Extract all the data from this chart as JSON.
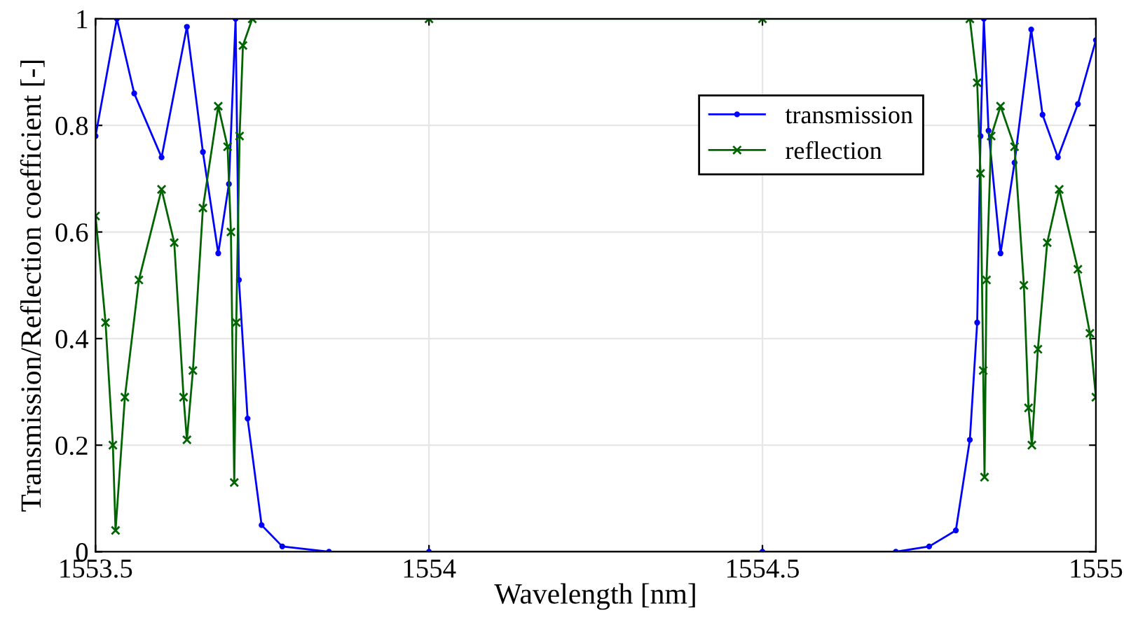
{
  "chart_data": {
    "type": "line",
    "xlabel": "Wavelength [nm]",
    "ylabel": "Transmission/Reflection coefficient [-]",
    "xlim": [
      1553.5,
      1555
    ],
    "xticks": [
      1553.5,
      1554,
      1554.5,
      1555
    ],
    "ylim": [
      0,
      1
    ],
    "yticks": [
      0,
      0.2,
      0.4,
      0.6,
      0.8,
      1
    ],
    "grid": true,
    "legend": "top right",
    "line_style": "solid",
    "series": [
      {
        "name": "transmission",
        "color": "#0000ff",
        "marker": "circle",
        "x": [
          1553.5,
          1553.532,
          1553.558,
          1553.599,
          1553.637,
          1553.661,
          1553.684,
          1553.7,
          1553.71,
          1553.715,
          1553.728,
          1553.749,
          1553.78,
          1553.85,
          1554.0,
          1554.5,
          1554.7,
          1554.75,
          1554.79,
          1554.811,
          1554.822,
          1554.827,
          1554.832,
          1554.839,
          1554.857,
          1554.878,
          1554.903,
          1554.92,
          1554.943,
          1554.973,
          1555.0
        ],
        "values": [
          0.78,
          1.0,
          0.86,
          0.74,
          0.985,
          0.75,
          0.56,
          0.69,
          1.0,
          0.51,
          0.25,
          0.05,
          0.01,
          0.0,
          0.0,
          0.0,
          0.0,
          0.01,
          0.04,
          0.21,
          0.43,
          0.78,
          1.0,
          0.79,
          0.56,
          0.73,
          0.98,
          0.82,
          0.74,
          0.84,
          0.96
        ]
      },
      {
        "name": "reflection",
        "color": "#006400",
        "marker": "cross",
        "x": [
          1553.5,
          1553.515,
          1553.526,
          1553.53,
          1553.544,
          1553.565,
          1553.599,
          1553.618,
          1553.632,
          1553.637,
          1553.646,
          1553.661,
          1553.684,
          1553.698,
          1553.703,
          1553.708,
          1553.711,
          1553.716,
          1553.721,
          1553.735,
          1554.0,
          1554.5,
          1554.811,
          1554.822,
          1554.827,
          1554.831,
          1554.833,
          1554.836,
          1554.843,
          1554.857,
          1554.878,
          1554.892,
          1554.899,
          1554.904,
          1554.913,
          1554.927,
          1554.945,
          1554.973,
          1554.991,
          1555.0
        ],
        "values": [
          0.63,
          0.43,
          0.2,
          0.04,
          0.29,
          0.51,
          0.68,
          0.58,
          0.29,
          0.21,
          0.34,
          0.645,
          0.836,
          0.76,
          0.6,
          0.13,
          0.43,
          0.78,
          0.95,
          1.0,
          1.0,
          1.0,
          1.0,
          0.88,
          0.71,
          0.34,
          0.14,
          0.51,
          0.78,
          0.836,
          0.76,
          0.5,
          0.27,
          0.2,
          0.38,
          0.58,
          0.68,
          0.53,
          0.41,
          0.29
        ]
      }
    ]
  }
}
